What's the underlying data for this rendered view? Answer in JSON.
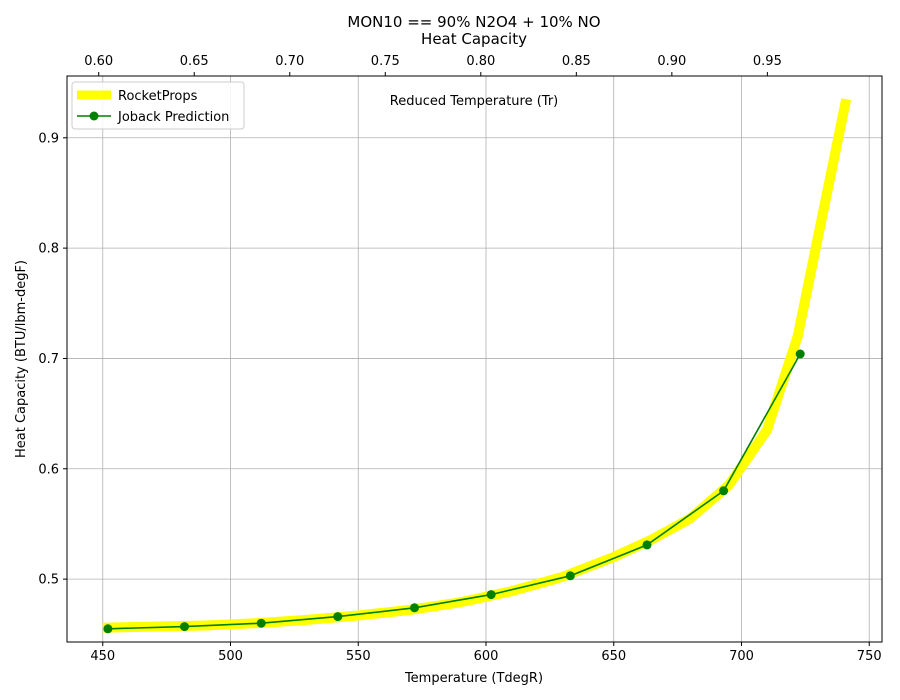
{
  "chart_data": {
    "type": "line",
    "title_line1": "MON10 == 90% N2O4 + 10% NO",
    "title_line2": "Heat Capacity",
    "xlabel": "Temperature (TdegR)",
    "ylabel": "Heat Capacity (BTU/lbm-degF)",
    "x2label": "Reduced Temperature (Tr)",
    "xlim": [
      436,
      755
    ],
    "ylim": [
      0.443,
      0.956
    ],
    "x2lim": [
      0.5834,
      1.01
    ],
    "grid": true,
    "legend_position": "upper left",
    "x_ticks": [
      "450",
      "500",
      "550",
      "600",
      "650",
      "700",
      "750"
    ],
    "y_ticks": [
      "0.5",
      "0.6",
      "0.7",
      "0.8",
      "0.9"
    ],
    "x2_ticks": [
      "0.60",
      "0.65",
      "0.70",
      "0.75",
      "0.80",
      "0.85",
      "0.90",
      "0.95"
    ],
    "series": [
      {
        "name": "RocketProps",
        "color": "#ffff00",
        "marker": "none",
        "x": [
          450,
          470,
          490,
          510,
          530,
          550,
          570,
          590,
          610,
          630,
          650,
          665,
          680,
          695,
          710,
          722,
          741
        ],
        "y": [
          0.456,
          0.457,
          0.458,
          0.46,
          0.463,
          0.467,
          0.472,
          0.479,
          0.489,
          0.502,
          0.52,
          0.536,
          0.555,
          0.585,
          0.635,
          0.72,
          0.935
        ]
      },
      {
        "name": "Joback Prediction",
        "color": "#008000",
        "marker": "circle",
        "x": [
          452,
          482,
          512,
          542,
          572,
          602,
          633,
          663,
          693,
          723
        ],
        "y": [
          0.455,
          0.457,
          0.46,
          0.466,
          0.474,
          0.486,
          0.503,
          0.531,
          0.58,
          0.704
        ]
      }
    ]
  }
}
